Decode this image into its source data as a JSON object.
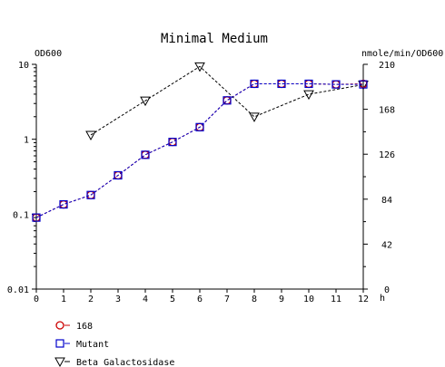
{
  "chart_data": {
    "type": "line",
    "title": "Minimal Medium",
    "xunit": "h",
    "x": [
      0,
      1,
      2,
      3,
      4,
      5,
      6,
      7,
      8,
      9,
      10,
      11,
      12
    ],
    "x_ticks": [
      "0",
      "1",
      "2",
      "3",
      "4",
      "5",
      "6",
      "7",
      "8",
      "9",
      "10",
      "11",
      "12"
    ],
    "xlim": [
      0,
      12
    ],
    "y_left": {
      "label": "OD600",
      "scale": "log",
      "lim": [
        0.01,
        10
      ],
      "ticks": [
        0.01,
        0.1,
        1,
        10
      ],
      "tick_labels": [
        "0.01",
        "0.1",
        "1",
        "10"
      ]
    },
    "y_right": {
      "label": "nmole/min/OD600",
      "scale": "linear",
      "lim": [
        0,
        210
      ],
      "ticks": [
        0,
        42,
        84,
        126,
        168,
        210
      ],
      "tick_labels": [
        "0",
        "42",
        "84",
        "126",
        "168",
        "210"
      ]
    },
    "series": [
      {
        "name": "168",
        "axis": "left",
        "marker": "circle",
        "color": "#cc0000",
        "line_style": "dashed",
        "x": [
          0,
          1,
          2,
          3,
          4,
          5,
          6,
          7,
          8,
          9,
          10,
          11,
          12
        ],
        "values": [
          0.09,
          0.135,
          0.18,
          0.33,
          0.62,
          0.92,
          1.45,
          3.3,
          5.5,
          5.5,
          5.5,
          5.4,
          5.5
        ]
      },
      {
        "name": "Mutant",
        "axis": "left",
        "marker": "square",
        "color": "#0000cc",
        "line_style": "dashed",
        "x": [
          0,
          1,
          2,
          3,
          4,
          5,
          6,
          7,
          8,
          9,
          10,
          11,
          12
        ],
        "values": [
          0.09,
          0.135,
          0.18,
          0.33,
          0.62,
          0.92,
          1.45,
          3.3,
          5.5,
          5.5,
          5.5,
          5.4,
          5.4
        ]
      },
      {
        "name": "Beta Galactosidase",
        "axis": "right",
        "marker": "triangle-down",
        "color": "#000000",
        "line_style": "dashed",
        "x": [
          2,
          4,
          6,
          8,
          10,
          12
        ],
        "values": [
          144,
          176,
          208,
          161,
          182,
          191
        ]
      }
    ],
    "legend_position": "bottom-left",
    "grid": false
  }
}
